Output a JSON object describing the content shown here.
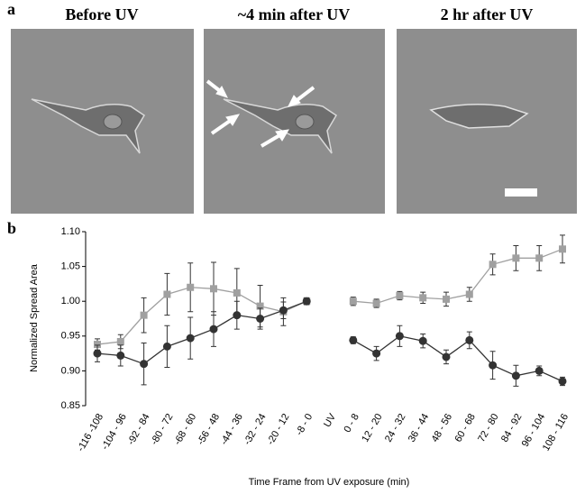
{
  "panel_a": {
    "label": "a",
    "images": [
      {
        "title": "Before UV"
      },
      {
        "title": "~4 min after UV"
      },
      {
        "title": "2 hr after UV"
      }
    ]
  },
  "chart_data": {
    "type": "line",
    "panel_label": "b",
    "y_label": "Normalized Spread Area",
    "x_label": "Time Frame from UV exposure (min)",
    "categories": [
      "-116 -108",
      "-104 - 96",
      "-92 - 84",
      "-80 - 72",
      "-68 - 60",
      "-56 - 48",
      "-44 - 36",
      "-32 - 24",
      "-20 - 12",
      "-8 - 0",
      "UV",
      "0 - 8",
      "12 - 20",
      "24 - 32",
      "36 - 44",
      "48 - 56",
      "60 - 68",
      "72 - 80",
      "84 - 92",
      "96 - 104",
      "108 - 116"
    ],
    "ylim": [
      0.85,
      1.1
    ],
    "yticks": [
      0.85,
      {
        "value": 0.9,
        "label": "0.90"
      },
      0.95,
      {
        "value": 1,
        "label": "1.00"
      },
      1.05,
      {
        "value": 1.1,
        "label": "1.10"
      }
    ],
    "series": [
      {
        "color": "#a0a0a0",
        "marker": "square",
        "values": [
          0.938,
          0.942,
          0.98,
          1.01,
          1.02,
          1.018,
          1.012,
          0.993,
          0.985,
          1.0,
          null,
          1.0,
          0.997,
          1.008,
          1.005,
          1.003,
          1.01,
          1.053,
          1.062,
          1.062,
          1.075
        ],
        "errors": [
          0.008,
          0.01,
          0.025,
          0.03,
          0.035,
          0.038,
          0.035,
          0.03,
          0.02,
          0.005,
          null,
          0.006,
          0.006,
          0.006,
          0.008,
          0.01,
          0.01,
          0.015,
          0.018,
          0.018,
          0.02
        ]
      },
      {
        "color": "#333333",
        "marker": "circle",
        "values": [
          0.925,
          0.922,
          0.91,
          0.935,
          0.947,
          0.96,
          0.98,
          0.975,
          0.987,
          1.0,
          null,
          0.944,
          0.925,
          0.95,
          0.943,
          0.92,
          0.944,
          0.908,
          0.893,
          0.9,
          0.885
        ],
        "errors": [
          0.012,
          0.015,
          0.03,
          0.03,
          0.03,
          0.025,
          0.02,
          0.015,
          0.012,
          0.005,
          null,
          0.005,
          0.01,
          0.015,
          0.01,
          0.01,
          0.012,
          0.02,
          0.015,
          0.007,
          0.006
        ]
      }
    ]
  }
}
